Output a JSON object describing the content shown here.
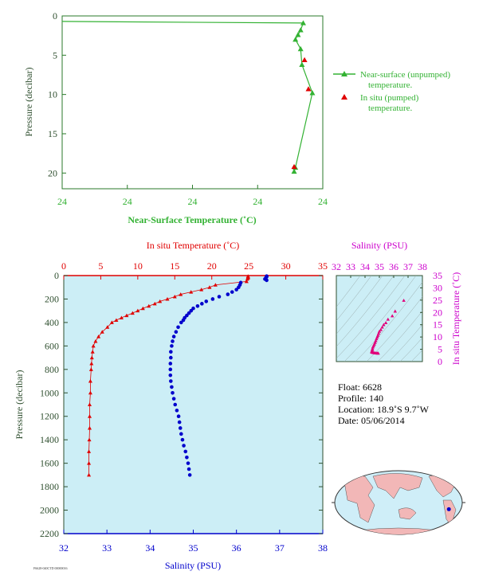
{
  "colors": {
    "near_surface": "#33b233",
    "insitu_temp": "#e00000",
    "salinity": "#0000cc",
    "ts_series": "#e0007a",
    "axis_green": "#2a7a2a",
    "axis_dark": "#2f4f2f",
    "plot_bg": "#cceef6",
    "land": "#f2b7b7",
    "ocean": "#cfeef8"
  },
  "chart_data": [
    {
      "id": "near_surface",
      "type": "line",
      "xlabel": "Near-Surface Temperature (˚C)",
      "ylabel": "Pressure (decibar)",
      "x_ticks": [
        "24",
        "24",
        "24",
        "24",
        "24"
      ],
      "x_range": [
        23.0,
        25.0
      ],
      "ylim": [
        0,
        22
      ],
      "y_ticks": [
        "0",
        "5",
        "10",
        "15",
        "20"
      ],
      "y_inverted": true,
      "series": [
        {
          "name": "Near-surface (unpumped) temperature.",
          "marker": "triangle-line",
          "points": [
            {
              "t": 23.0,
              "p": 0.7
            },
            {
              "t": 24.85,
              "p": 0.9
            },
            {
              "t": 24.83,
              "p": 1.8
            },
            {
              "t": 24.81,
              "p": 2.4
            },
            {
              "t": 24.79,
              "p": 3.0
            },
            {
              "t": 24.83,
              "p": 4.2
            },
            {
              "t": 24.84,
              "p": 6.2
            },
            {
              "t": 24.92,
              "p": 9.8
            },
            {
              "t": 24.79,
              "p": 19.3
            },
            {
              "t": 24.78,
              "p": 19.8
            }
          ]
        },
        {
          "name": "In situ (pumped) temperature.",
          "marker": "triangle",
          "points": [
            {
              "t": 24.86,
              "p": 5.6
            },
            {
              "t": 24.89,
              "p": 9.3
            },
            {
              "t": 24.78,
              "p": 19.2
            }
          ]
        }
      ]
    },
    {
      "id": "profile",
      "type": "scatter",
      "ylabel": "Pressure (decibar)",
      "ylim": [
        0,
        2200
      ],
      "y_ticks": [
        "0",
        "200",
        "400",
        "600",
        "800",
        "1000",
        "1200",
        "1400",
        "1600",
        "1800",
        "2000",
        "2200"
      ],
      "y_inverted": true,
      "top_xlabel": "In situ Temperature (˚C)",
      "top_xlim": [
        0,
        35
      ],
      "top_x_ticks": [
        "0",
        "5",
        "10",
        "15",
        "20",
        "25",
        "30",
        "35"
      ],
      "bottom_xlabel": "Salinity (PSU)",
      "bottom_xlim": [
        32,
        38
      ],
      "bottom_x_ticks": [
        "32",
        "33",
        "34",
        "35",
        "36",
        "37",
        "38"
      ],
      "temperature": {
        "pressure": [
          5,
          10,
          15,
          20,
          30,
          50,
          80,
          100,
          120,
          140,
          160,
          180,
          200,
          220,
          240,
          260,
          280,
          300,
          320,
          340,
          360,
          380,
          400,
          440,
          480,
          520,
          560,
          600,
          650,
          700,
          750,
          800,
          900,
          1000,
          1100,
          1200,
          1300,
          1400,
          1500,
          1600,
          1700
        ],
        "values": [
          24.9,
          24.9,
          24.9,
          24.9,
          24.8,
          24.7,
          20.5,
          19.7,
          18.6,
          17.2,
          15.8,
          15.0,
          14.0,
          13.0,
          12.3,
          11.5,
          10.7,
          10.0,
          9.3,
          8.5,
          7.8,
          7.1,
          6.5,
          5.9,
          5.2,
          4.7,
          4.3,
          4.0,
          3.9,
          3.8,
          3.75,
          3.7,
          3.6,
          3.6,
          3.5,
          3.5,
          3.5,
          3.45,
          3.4,
          3.4,
          3.4
        ]
      },
      "salinity": {
        "pressure": [
          5,
          10,
          20,
          30,
          40,
          60,
          80,
          100,
          120,
          140,
          160,
          180,
          200,
          220,
          240,
          260,
          280,
          300,
          320,
          340,
          360,
          380,
          400,
          440,
          480,
          520,
          560,
          600,
          650,
          700,
          750,
          800,
          850,
          900,
          950,
          1000,
          1050,
          1100,
          1150,
          1200,
          1250,
          1300,
          1350,
          1400,
          1450,
          1500,
          1550,
          1600,
          1650,
          1700
        ],
        "values": [
          36.7,
          36.7,
          36.68,
          36.66,
          36.7,
          36.1,
          36.08,
          36.05,
          36.0,
          35.9,
          35.8,
          35.6,
          35.45,
          35.3,
          35.2,
          35.1,
          35.0,
          34.95,
          34.9,
          34.85,
          34.8,
          34.77,
          34.72,
          34.65,
          34.6,
          34.55,
          34.52,
          34.5,
          34.48,
          34.48,
          34.47,
          34.47,
          34.47,
          34.48,
          34.5,
          34.52,
          34.55,
          34.58,
          34.62,
          34.66,
          34.68,
          34.7,
          34.72,
          34.75,
          34.78,
          34.82,
          34.85,
          34.88,
          34.9,
          34.92
        ]
      }
    },
    {
      "id": "ts_diagram",
      "type": "scatter",
      "top_xlabel": "Salinity (PSU)",
      "xlim": [
        32,
        38
      ],
      "x_ticks": [
        "32",
        "33",
        "34",
        "35",
        "36",
        "37",
        "38"
      ],
      "ylabel": "In situ Temperature (˚C)",
      "ylim": [
        0,
        35
      ],
      "y_ticks": [
        "0",
        "5",
        "10",
        "15",
        "20",
        "25",
        "30",
        "35"
      ],
      "points": {
        "salinity": [
          36.7,
          36.1,
          35.9,
          35.6,
          35.45,
          35.3,
          35.2,
          35.1,
          35.0,
          34.95,
          34.9,
          34.85,
          34.8,
          34.75,
          34.7,
          34.65,
          34.6,
          34.55,
          34.52,
          34.5,
          34.48,
          34.47,
          34.47,
          34.5,
          34.55,
          34.62,
          34.7,
          34.78,
          34.85,
          34.92
        ],
        "temperature": [
          24.9,
          20.5,
          18.6,
          17.2,
          15.8,
          15.0,
          14.0,
          13.0,
          12.3,
          11.5,
          10.7,
          10.0,
          9.3,
          8.5,
          7.8,
          7.1,
          6.5,
          5.9,
          5.2,
          4.7,
          4.3,
          4.0,
          3.9,
          3.8,
          3.7,
          3.6,
          3.5,
          3.5,
          3.4,
          3.4
        ]
      }
    }
  ],
  "info": {
    "float": "Float:  6628",
    "profile": "Profile:  140",
    "location": "Location:  18.9˚S   9.7˚W",
    "date": "Date:  05/06/2014"
  },
  "footer_id": "F6628-040CTD 00000016",
  "map": {
    "float_lat": -18.9,
    "float_lon": -9.7
  }
}
